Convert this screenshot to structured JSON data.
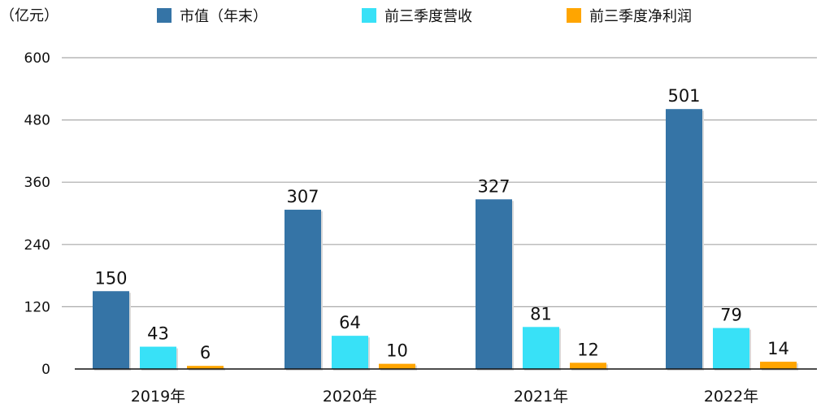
{
  "chart_data": {
    "type": "bar",
    "unit_label": "（亿元）",
    "categories": [
      "2019年",
      "2020年",
      "2021年",
      "2022年"
    ],
    "series": [
      {
        "name": "市值（年末）",
        "color": "#3574a6",
        "values": [
          150,
          307,
          327,
          501
        ]
      },
      {
        "name": "前三季度营收",
        "color": "#38e1f7",
        "values": [
          43,
          64,
          81,
          79
        ]
      },
      {
        "name": "前三季度净利润",
        "color": "#ffa500",
        "values": [
          6,
          10,
          12,
          14
        ]
      }
    ],
    "yticks": [
      0,
      120,
      240,
      360,
      480,
      600
    ],
    "ylim": [
      0,
      600
    ],
    "grid": true,
    "legend_position": "top",
    "data_labels": true
  }
}
